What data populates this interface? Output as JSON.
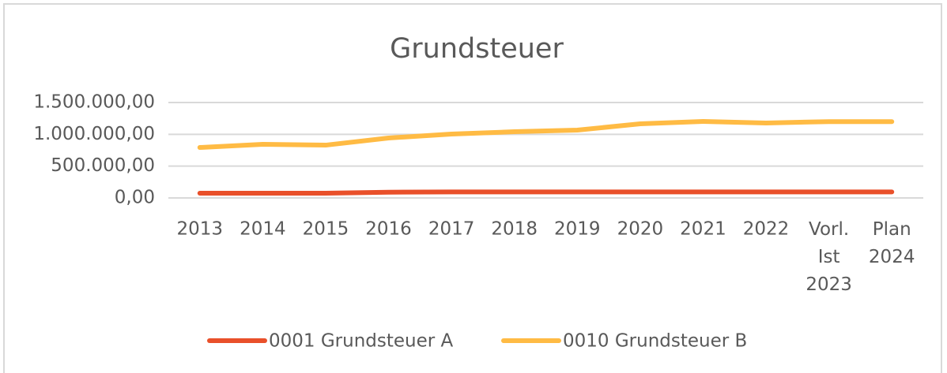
{
  "chart_data": {
    "type": "line",
    "title": "Grundsteuer",
    "categories": [
      "2013",
      "2014",
      "2015",
      "2016",
      "2017",
      "2018",
      "2019",
      "2020",
      "2021",
      "2022",
      "Vorl. Ist 2023",
      "Plan 2024"
    ],
    "series": [
      {
        "name": "0001 Grundsteuer A",
        "color": "#e9502a",
        "values": [
          75000,
          75000,
          75000,
          90000,
          95000,
          95000,
          95000,
          95000,
          95000,
          95000,
          95000,
          95000
        ]
      },
      {
        "name": "0010 Grundsteuer B",
        "color": "#ffbb44",
        "values": [
          793000,
          843000,
          830000,
          942000,
          1004000,
          1041000,
          1066000,
          1165000,
          1202000,
          1178000,
          1200000,
          1200000
        ]
      }
    ],
    "ylim": [
      0,
      1500000
    ],
    "yticks": [
      {
        "value": 0,
        "label": "0,00"
      },
      {
        "value": 500000,
        "label": "500.000,00"
      },
      {
        "value": 1000000,
        "label": "1.000.000,00"
      },
      {
        "value": 1500000,
        "label": "1.500.000,00"
      }
    ],
    "grid": true,
    "legend": "bottom"
  }
}
